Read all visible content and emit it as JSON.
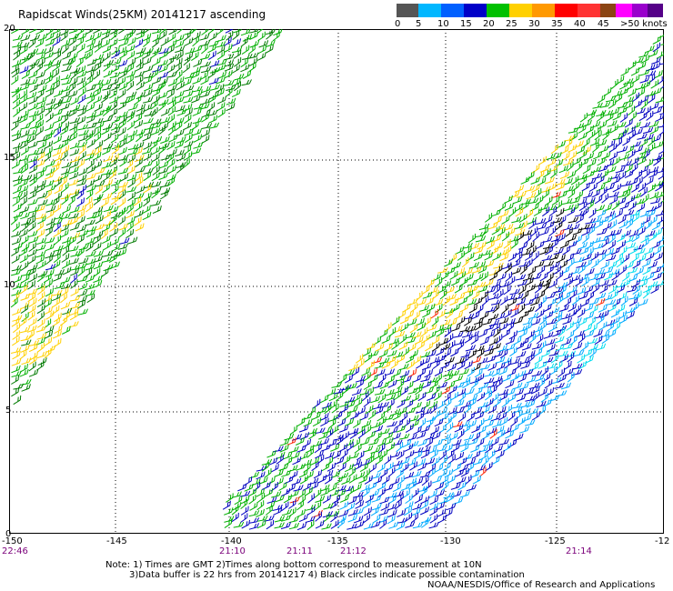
{
  "title": "Rapidscat Winds(25KM) 20141217 ascending",
  "legend": {
    "colors": [
      "#555555",
      "#00b7ff",
      "#0060ff",
      "#0000c8",
      "#00c000",
      "#ffd000",
      "#ff9900",
      "#ff0000",
      "#ff3333",
      "#8b4513",
      "#ff00ff",
      "#9900cc",
      "#550088"
    ],
    "labels": [
      "0",
      "5",
      "10",
      "15",
      "20",
      "25",
      "30",
      "35",
      "40",
      "45",
      ">50 knots"
    ]
  },
  "lat_labels": [
    "20",
    "15",
    "10",
    "5",
    "0"
  ],
  "lon_labels": [
    "-150",
    "-145",
    "-140",
    "-135",
    "-130",
    "-125",
    "-12"
  ],
  "time_labels": [
    "22:46",
    "21:10",
    "21:11",
    "21:12",
    "21:14"
  ],
  "notes": {
    "line1": "Note: 1) Times are GMT 2)Times along bottom correspond to measurement at 10N",
    "line2": "3)Data buffer is 22 hrs from 20141217 4) Black circles indicate possible contamination",
    "line3": "NOAA/NESDIS/Office of Research and Applications"
  },
  "map": {
    "lat_range": [
      0,
      20
    ],
    "lon_range": [
      -150,
      -122
    ],
    "gridlines": true,
    "wind_colors": {
      "green": "#00b000",
      "dark_green": "#007a00",
      "yellow": "#ffd000",
      "blue": "#0000c0",
      "light_blue": "#00aaff",
      "cyan": "#00ddee",
      "black": "#000000",
      "red": "#ff2200"
    }
  }
}
